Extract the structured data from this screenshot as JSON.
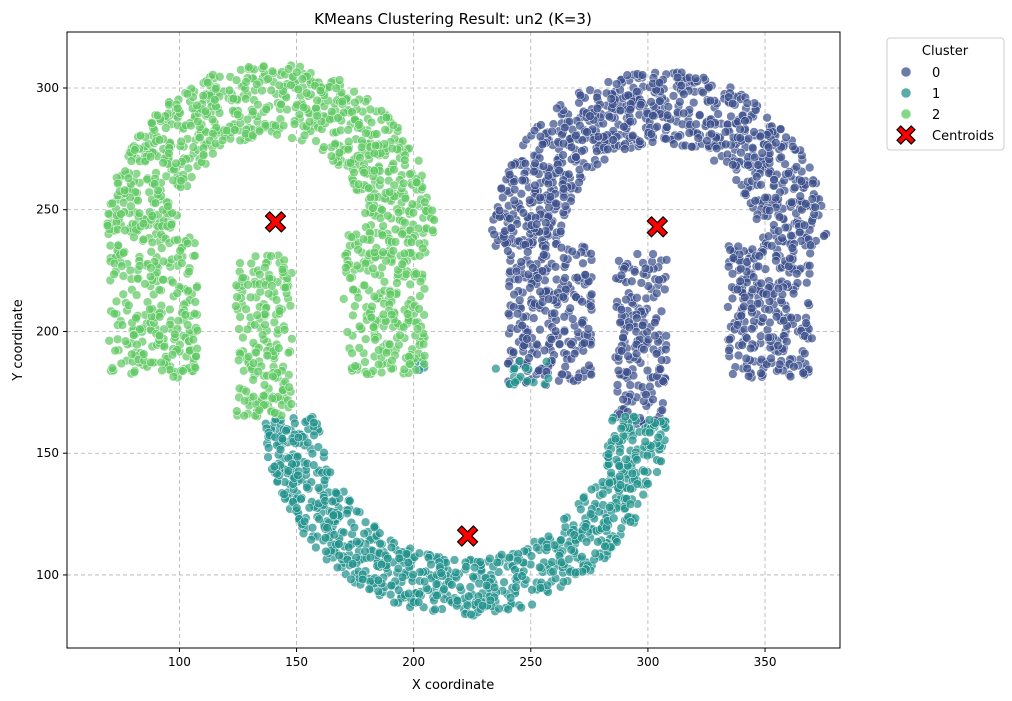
{
  "chart_data": {
    "type": "scatter",
    "title": "KMeans Clustering Result: un2 (K=3)",
    "xlabel": "X coordinate",
    "ylabel": "Y coordinate",
    "xlim": [
      52,
      382
    ],
    "ylim": [
      70,
      323
    ],
    "xticks": [
      100,
      150,
      200,
      250,
      300,
      350
    ],
    "yticks": [
      100,
      150,
      200,
      250,
      300
    ],
    "grid": true,
    "legend": {
      "title": "Cluster",
      "placement": "outside-top-right",
      "entries": [
        {
          "label": "0",
          "color": "#3b4f8c",
          "marker": "circle"
        },
        {
          "label": "1",
          "color": "#21918c",
          "marker": "circle"
        },
        {
          "label": "2",
          "color": "#5ec962",
          "marker": "circle"
        },
        {
          "label": "Centroids",
          "color": "#ff0000",
          "marker": "X"
        }
      ]
    },
    "clusters": [
      {
        "label": "0",
        "color": "#3b4f8c",
        "regions": [
          {
            "shape": "arc",
            "cx": 305,
            "cy": 235,
            "r_inner": 42,
            "r_outer": 72,
            "a_from": 0,
            "a_to": 180,
            "n": 850
          },
          {
            "shape": "rect",
            "x0": 240,
            "x1": 276,
            "y0": 178,
            "y1": 236,
            "n": 260
          },
          {
            "shape": "rect",
            "x0": 334,
            "x1": 370,
            "y0": 181,
            "y1": 236,
            "n": 260
          },
          {
            "shape": "rect",
            "x0": 286,
            "x1": 308,
            "y0": 162,
            "y1": 232,
            "n": 190
          }
        ]
      },
      {
        "label": "1",
        "color": "#21918c",
        "regions": [
          {
            "shape": "arc",
            "cx": 222,
            "cy": 170,
            "r_inner": 63,
            "r_outer": 87,
            "a_from": 184,
            "a_to": 356,
            "n": 900
          },
          {
            "shape": "rect",
            "x0": 232,
            "x1": 260,
            "y0": 178,
            "y1": 188,
            "n": 18
          },
          {
            "shape": "rect",
            "x0": 196,
            "x1": 205,
            "y0": 183,
            "y1": 188,
            "n": 4
          }
        ]
      },
      {
        "label": "2",
        "color": "#5ec962",
        "regions": [
          {
            "shape": "arc",
            "cx": 139,
            "cy": 240,
            "r_inner": 40,
            "r_outer": 70,
            "a_from": 0,
            "a_to": 180,
            "n": 780
          },
          {
            "shape": "rect",
            "x0": 70,
            "x1": 108,
            "y0": 181,
            "y1": 240,
            "n": 250
          },
          {
            "shape": "rect",
            "x0": 170,
            "x1": 205,
            "y0": 182,
            "y1": 240,
            "n": 240
          },
          {
            "shape": "rect",
            "x0": 124,
            "x1": 148,
            "y0": 164,
            "y1": 232,
            "n": 200
          }
        ]
      }
    ],
    "centroids": [
      {
        "cluster": "0",
        "x": 304,
        "y": 243
      },
      {
        "cluster": "1",
        "x": 223,
        "y": 116
      },
      {
        "cluster": "2",
        "x": 141,
        "y": 245
      }
    ]
  }
}
